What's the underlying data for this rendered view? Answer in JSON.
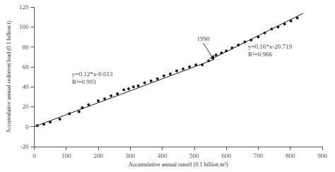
{
  "chart_data": {
    "type": "scatter",
    "xlabel": "Accumulative annual runoff (0.1 billion m³)",
    "ylabel": "Accumulative annual sediment load (0.1 billion t)",
    "xlim": [
      0,
      900
    ],
    "ylim": [
      -20,
      120
    ],
    "xticks": [
      0,
      100,
      200,
      300,
      400,
      500,
      600,
      700,
      800,
      900
    ],
    "yticks": [
      -20,
      0,
      20,
      40,
      60,
      80,
      100,
      120
    ],
    "grid": false,
    "series": [
      {
        "type": "scatter",
        "marker": "circle",
        "color": "#1a1a3a",
        "x": [
          10,
          30,
          50,
          80,
          110,
          140,
          150,
          170,
          200,
          220,
          240,
          260,
          280,
          295,
          310,
          325,
          345,
          365,
          385,
          405,
          425,
          445,
          465,
          485,
          505,
          525,
          545,
          558
        ],
        "values": [
          1.0,
          2.5,
          4.5,
          7.5,
          13,
          15,
          19,
          22,
          26,
          28,
          31,
          33,
          37,
          38,
          40,
          41,
          44,
          46,
          48,
          51,
          53,
          56,
          58,
          60,
          62,
          62,
          66,
          70
        ]
      },
      {
        "type": "scatter",
        "marker": "circle",
        "color": "#1a1a3a",
        "x": [
          568,
          585,
          600,
          618,
          638,
          658,
          678,
          700,
          720,
          742,
          762,
          782,
          802,
          822
        ],
        "values": [
          72,
          74,
          76,
          79,
          82,
          85,
          87,
          90,
          94,
          98,
          100,
          103,
          106,
          109
        ]
      },
      {
        "type": "line",
        "line_style": "solid",
        "color": "#1a1a1a",
        "x": [
          0,
          560
        ],
        "values": [
          -0.013,
          67.187
        ]
      },
      {
        "type": "line",
        "line_style": "solid",
        "color": "#1a1a1a",
        "x": [
          555,
          840
        ],
        "values": [
          68.081,
          113.681
        ]
      }
    ],
    "annotations": [
      {
        "text": "y=0.12*x-0.013\nR²=0.993",
        "x": 118,
        "y": 57
      },
      {
        "text": "y=0.16*x-20.719\nR²=0.966",
        "x": 668,
        "y": 84
      },
      {
        "text": "1990",
        "x": 528,
        "y": 84,
        "arrow_x": 562,
        "arrow_y": 67
      }
    ]
  }
}
